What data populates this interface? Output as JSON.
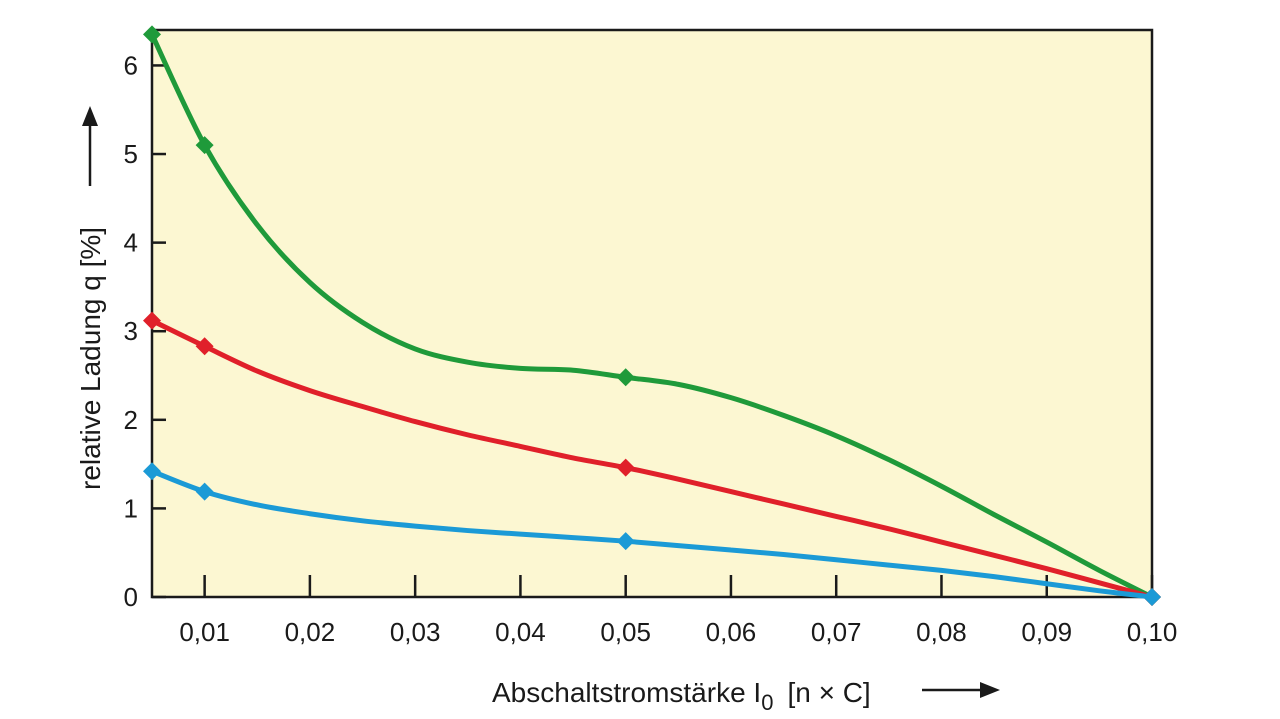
{
  "chart_data": {
    "type": "line",
    "xlabel": "Abschaltstromstärke I",
    "xlabel_sub": "0",
    "xlabel_unit": "[n × C]",
    "ylabel": "relative Ladung q  [%]",
    "xlim": [
      0.005,
      0.1
    ],
    "ylim": [
      0,
      6.4
    ],
    "x_ticks": [
      0.01,
      0.02,
      0.03,
      0.04,
      0.05,
      0.06,
      0.07,
      0.08,
      0.09,
      0.1
    ],
    "x_tick_labels": [
      "0,01",
      "0,02",
      "0,03",
      "0,04",
      "0,05",
      "0,06",
      "0,07",
      "0,08",
      "0,09",
      "0,10"
    ],
    "y_ticks": [
      0,
      1,
      2,
      3,
      4,
      5,
      6
    ],
    "y_tick_labels": [
      "0",
      "1",
      "2",
      "3",
      "4",
      "5",
      "6"
    ],
    "background": "#fcf7d2",
    "grid": false,
    "series": [
      {
        "color": "#1f9a3a",
        "x": [
          0.005,
          0.01,
          0.05,
          0.1
        ],
        "y": [
          6.35,
          5.1,
          2.48,
          0.0
        ],
        "curve": [
          [
            0.005,
            6.35
          ],
          [
            0.01,
            5.1
          ],
          [
            0.015,
            4.2
          ],
          [
            0.02,
            3.55
          ],
          [
            0.025,
            3.1
          ],
          [
            0.03,
            2.8
          ],
          [
            0.035,
            2.65
          ],
          [
            0.04,
            2.58
          ],
          [
            0.045,
            2.56
          ],
          [
            0.05,
            2.48
          ],
          [
            0.055,
            2.4
          ],
          [
            0.06,
            2.25
          ],
          [
            0.065,
            2.05
          ],
          [
            0.07,
            1.82
          ],
          [
            0.075,
            1.55
          ],
          [
            0.08,
            1.25
          ],
          [
            0.085,
            0.93
          ],
          [
            0.09,
            0.62
          ],
          [
            0.095,
            0.3
          ],
          [
            0.1,
            0.0
          ]
        ]
      },
      {
        "color": "#e0202a",
        "x": [
          0.005,
          0.01,
          0.05,
          0.1
        ],
        "y": [
          3.12,
          2.83,
          1.46,
          0.0
        ],
        "curve": [
          [
            0.005,
            3.12
          ],
          [
            0.01,
            2.83
          ],
          [
            0.015,
            2.55
          ],
          [
            0.02,
            2.33
          ],
          [
            0.025,
            2.15
          ],
          [
            0.03,
            1.98
          ],
          [
            0.035,
            1.83
          ],
          [
            0.04,
            1.7
          ],
          [
            0.045,
            1.57
          ],
          [
            0.05,
            1.46
          ],
          [
            0.055,
            1.33
          ],
          [
            0.06,
            1.19
          ],
          [
            0.065,
            1.05
          ],
          [
            0.07,
            0.91
          ],
          [
            0.075,
            0.77
          ],
          [
            0.08,
            0.62
          ],
          [
            0.085,
            0.47
          ],
          [
            0.09,
            0.32
          ],
          [
            0.095,
            0.16
          ],
          [
            0.1,
            0.0
          ]
        ]
      },
      {
        "color": "#1b9ad6",
        "x": [
          0.005,
          0.01,
          0.05,
          0.1
        ],
        "y": [
          1.42,
          1.19,
          0.63,
          0.0
        ],
        "curve": [
          [
            0.005,
            1.42
          ],
          [
            0.01,
            1.19
          ],
          [
            0.015,
            1.04
          ],
          [
            0.02,
            0.94
          ],
          [
            0.025,
            0.86
          ],
          [
            0.03,
            0.8
          ],
          [
            0.035,
            0.75
          ],
          [
            0.04,
            0.71
          ],
          [
            0.045,
            0.67
          ],
          [
            0.05,
            0.63
          ],
          [
            0.055,
            0.58
          ],
          [
            0.06,
            0.53
          ],
          [
            0.065,
            0.48
          ],
          [
            0.07,
            0.42
          ],
          [
            0.075,
            0.36
          ],
          [
            0.08,
            0.3
          ],
          [
            0.085,
            0.23
          ],
          [
            0.09,
            0.15
          ],
          [
            0.095,
            0.07
          ],
          [
            0.1,
            0.0
          ]
        ]
      }
    ]
  }
}
